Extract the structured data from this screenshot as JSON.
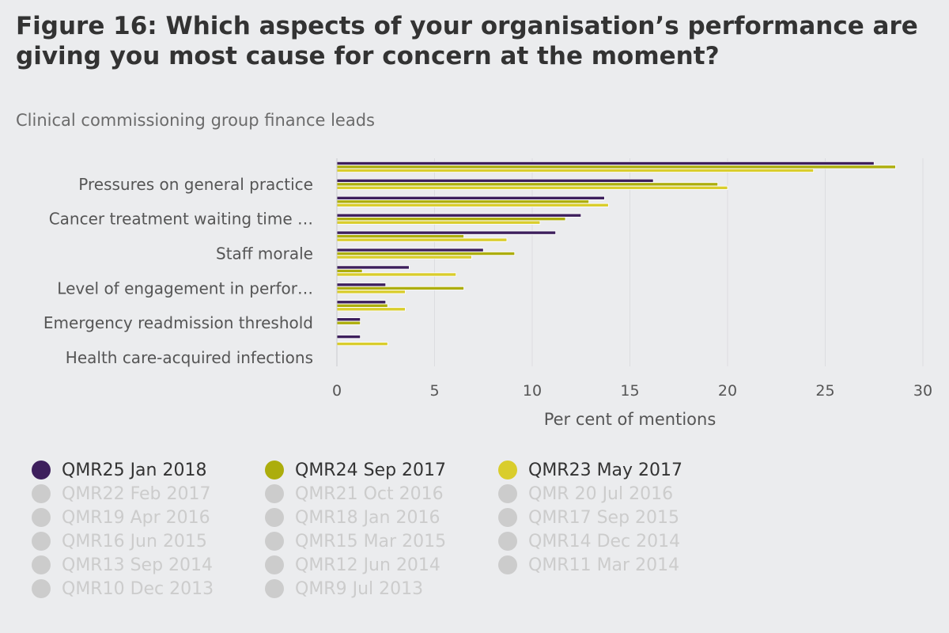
{
  "header": {
    "title": "Figure 16: Which aspects of your organisation’s performance are giving you most cause for concern at the moment?",
    "subtitle": "Clinical commissioning group finance leads"
  },
  "chart_data": {
    "type": "bar",
    "orientation": "horizontal",
    "xlabel": "Per cent of mentions",
    "xlim": [
      0,
      30
    ],
    "xticks": [
      0,
      5,
      10,
      15,
      20,
      25,
      30
    ],
    "categories": [
      "",
      "Pressures on general practice",
      "",
      "Cancer treatment waiting time …",
      "",
      "Staff morale",
      "",
      "Level of engagement in perfor…",
      "",
      "Emergency readmission threshold",
      "",
      "Health care-acquired infections"
    ],
    "series": [
      {
        "name": "QMR25 Jan 2018",
        "color": "#3d1f5c",
        "values": [
          27.5,
          16.2,
          13.7,
          12.5,
          11.2,
          7.5,
          3.7,
          2.5,
          2.5,
          1.2,
          1.2,
          0
        ]
      },
      {
        "name": "QMR24 Sep 2017",
        "color": "#acad0c",
        "values": [
          28.6,
          19.5,
          12.9,
          11.7,
          6.5,
          9.1,
          1.3,
          6.5,
          2.6,
          1.2,
          0,
          0
        ]
      },
      {
        "name": "QMR23 May 2017",
        "color": "#d9cd2c",
        "values": [
          24.4,
          20.0,
          13.9,
          10.4,
          8.7,
          6.9,
          6.1,
          3.5,
          3.5,
          0,
          2.6,
          0
        ]
      }
    ],
    "legend_position": "bottom"
  },
  "legend": {
    "items": [
      {
        "label": "QMR25 Jan 2018",
        "color": "#3d1f5c",
        "active": true
      },
      {
        "label": "QMR24 Sep 2017",
        "color": "#acad0c",
        "active": true
      },
      {
        "label": "QMR23 May 2017",
        "color": "#d9cd2c",
        "active": true
      },
      {
        "label": "QMR22 Feb 2017",
        "color": "#cccccc",
        "active": false
      },
      {
        "label": "QMR21 Oct 2016",
        "color": "#cccccc",
        "active": false
      },
      {
        "label": "QMR 20 Jul 2016",
        "color": "#cccccc",
        "active": false
      },
      {
        "label": "QMR19 Apr 2016",
        "color": "#cccccc",
        "active": false
      },
      {
        "label": "QMR18 Jan 2016",
        "color": "#cccccc",
        "active": false
      },
      {
        "label": "QMR17 Sep 2015",
        "color": "#cccccc",
        "active": false
      },
      {
        "label": "QMR16 Jun 2015",
        "color": "#cccccc",
        "active": false
      },
      {
        "label": "QMR15 Mar 2015",
        "color": "#cccccc",
        "active": false
      },
      {
        "label": "QMR14 Dec 2014",
        "color": "#cccccc",
        "active": false
      },
      {
        "label": "QMR13 Sep 2014",
        "color": "#cccccc",
        "active": false
      },
      {
        "label": "QMR12 Jun 2014",
        "color": "#cccccc",
        "active": false
      },
      {
        "label": "QMR11 Mar 2014",
        "color": "#cccccc",
        "active": false
      },
      {
        "label": "QMR10 Dec 2013",
        "color": "#cccccc",
        "active": false
      },
      {
        "label": "QMR9 Jul 2013",
        "color": "#cccccc",
        "active": false
      }
    ]
  }
}
